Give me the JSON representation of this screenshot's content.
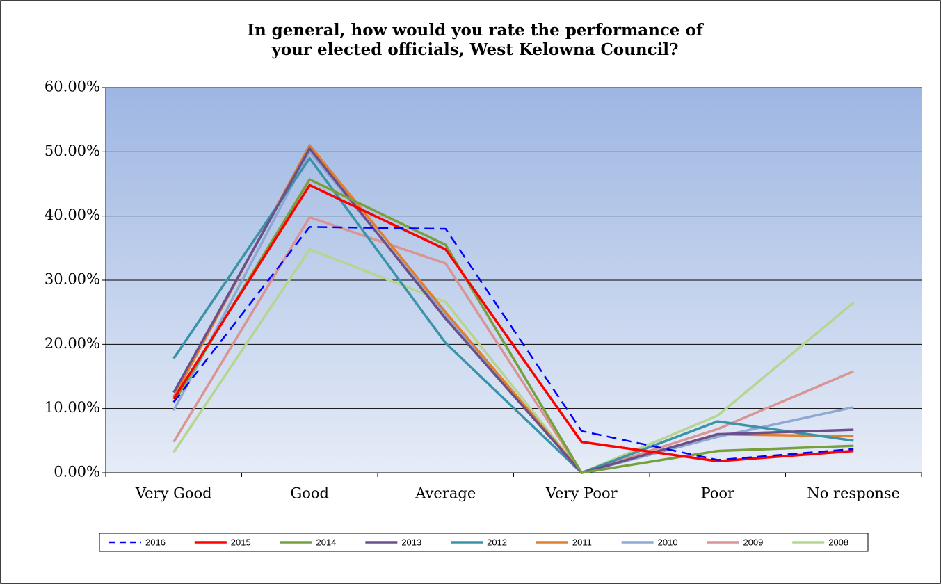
{
  "chart_data": {
    "type": "line",
    "title": "In general, how would you rate the performance of your elected officials, West Kelowna Council?",
    "categories": [
      "Very Good",
      "Good",
      "Average",
      "Very Poor",
      "Poor",
      "No response"
    ],
    "series": [
      {
        "name": "2016",
        "color": "#0000ff",
        "dashed": true,
        "values": [
          11,
          38.3,
          38,
          6.5,
          2,
          3.7
        ]
      },
      {
        "name": "2015",
        "color": "#ff0000",
        "values": [
          11.5,
          44.8,
          34.8,
          4.8,
          1.8,
          3.4
        ]
      },
      {
        "name": "2014",
        "color": "#77a03c",
        "values": [
          11,
          45.7,
          35.5,
          0,
          3.4,
          4.2
        ]
      },
      {
        "name": "2013",
        "color": "#6a4f8c",
        "values": [
          12.5,
          50.5,
          24,
          0,
          6,
          6.7
        ]
      },
      {
        "name": "2012",
        "color": "#3a93a8",
        "values": [
          17.8,
          49,
          20.2,
          0,
          8,
          5
        ]
      },
      {
        "name": "2011",
        "color": "#e07f2c",
        "values": [
          11.8,
          51,
          25,
          0,
          6,
          5.7
        ]
      },
      {
        "name": "2010",
        "color": "#8ea8d4",
        "values": [
          9.7,
          50,
          24.5,
          0,
          5.6,
          10.2
        ]
      },
      {
        "name": "2009",
        "color": "#d99594",
        "values": [
          4.8,
          39.8,
          32.6,
          0,
          6.8,
          15.8
        ]
      },
      {
        "name": "2008",
        "color": "#b6d58e",
        "values": [
          3.2,
          34.8,
          26.6,
          0,
          8.9,
          26.5
        ]
      }
    ],
    "ylim": [
      0,
      60
    ],
    "yticks": [
      {
        "value": 0,
        "label": "0.00%"
      },
      {
        "value": 10,
        "label": "10.00%"
      },
      {
        "value": 20,
        "label": "20.00%"
      },
      {
        "value": 30,
        "label": "30.00%"
      },
      {
        "value": 40,
        "label": "40.00%"
      },
      {
        "value": 50,
        "label": "50.00%"
      },
      {
        "value": 60,
        "label": "60.00%"
      }
    ],
    "grid": true,
    "legend": "bottom"
  }
}
